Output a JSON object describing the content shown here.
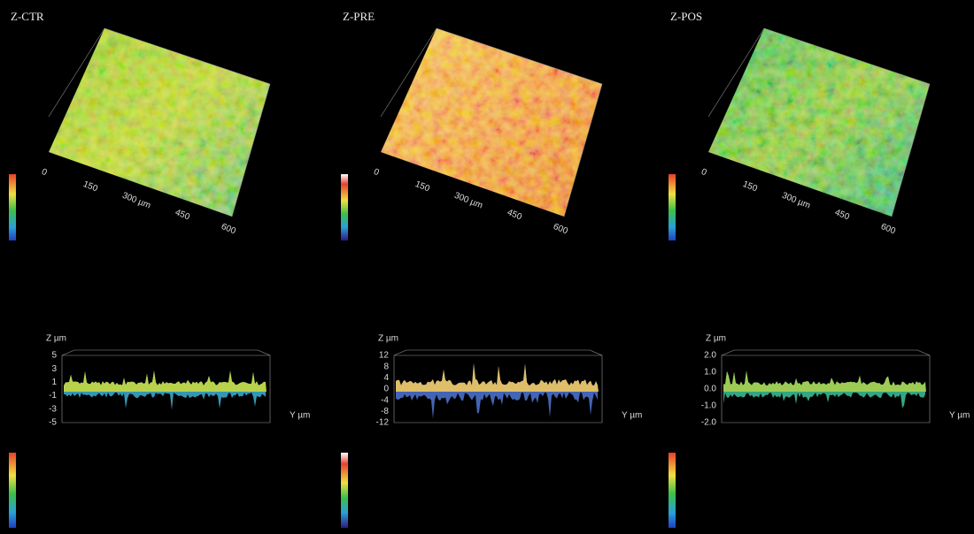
{
  "panels": [
    {
      "label": "Z-CTR",
      "surface_ticks": [
        "0",
        "150",
        "300 µm",
        "450",
        "600"
      ],
      "profile": {
        "z_label": "Z µm",
        "z_ticks": [
          "5",
          "3",
          "1",
          "-1",
          "-3",
          "-5"
        ],
        "y_label": "Y µm"
      }
    },
    {
      "label": "Z-PRE",
      "surface_ticks": [
        "0",
        "150",
        "300 µm",
        "450",
        "600"
      ],
      "profile": {
        "z_label": "Z µm",
        "z_ticks": [
          "12",
          "8",
          "4",
          "0",
          "-4",
          "-8",
          "-12"
        ],
        "y_label": "Y µm"
      }
    },
    {
      "label": "Z-POS",
      "surface_ticks": [
        "0",
        "150",
        "300 µm",
        "450",
        "600"
      ],
      "profile": {
        "z_label": "Z µm",
        "z_ticks": [
          "2.0",
          "1.0",
          "0.0",
          "-1.0",
          "-2.0"
        ],
        "y_label": "Y µm"
      }
    }
  ]
}
